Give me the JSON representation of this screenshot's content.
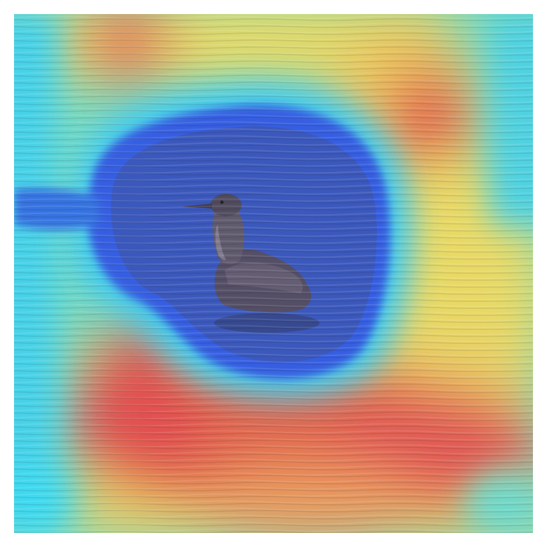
{
  "image": {
    "subject": "bird-on-water",
    "overlay": "heatmap",
    "colormap": [
      "#1f2fd0",
      "#2a7be0",
      "#33d6f0",
      "#7fe0b0",
      "#e8e060",
      "#f0a050",
      "#e04848"
    ],
    "water_color": "#3b4f86",
    "bird_color": "#4b4558"
  }
}
